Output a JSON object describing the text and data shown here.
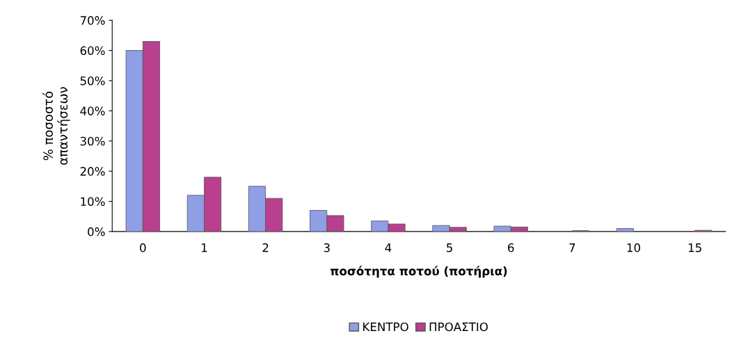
{
  "chart_data": {
    "type": "bar",
    "xlabel": "ποσότητα ποτού (ποτήρια)",
    "ylabel": "% ποσοστό\nαπαντήσεων",
    "categories": [
      "0",
      "1",
      "2",
      "3",
      "4",
      "5",
      "6",
      "7",
      "10",
      "15"
    ],
    "series": [
      {
        "name": "ΚΕΝΤΡΟ",
        "color": "#8f9fe6",
        "values": [
          60,
          12,
          15,
          7,
          3.5,
          2,
          1.8,
          0,
          1,
          0
        ]
      },
      {
        "name": "ΠΡΟΑΣΤΙΟ",
        "color": "#b8408f",
        "values": [
          63,
          18,
          11,
          5.3,
          2.5,
          1.4,
          1.5,
          0.3,
          0,
          0.4
        ]
      }
    ],
    "ylim": [
      0,
      70
    ],
    "yticks": [
      {
        "value": 0,
        "label": "0%"
      },
      {
        "value": 10,
        "label": "10%"
      },
      {
        "value": 20,
        "label": "20%"
      },
      {
        "value": 30,
        "label": "30%"
      },
      {
        "value": 40,
        "label": "40%"
      },
      {
        "value": 50,
        "label": "50%"
      },
      {
        "value": 60,
        "label": "60%"
      },
      {
        "value": 70,
        "label": "70%"
      }
    ],
    "grid": false,
    "legend": "bottom"
  }
}
